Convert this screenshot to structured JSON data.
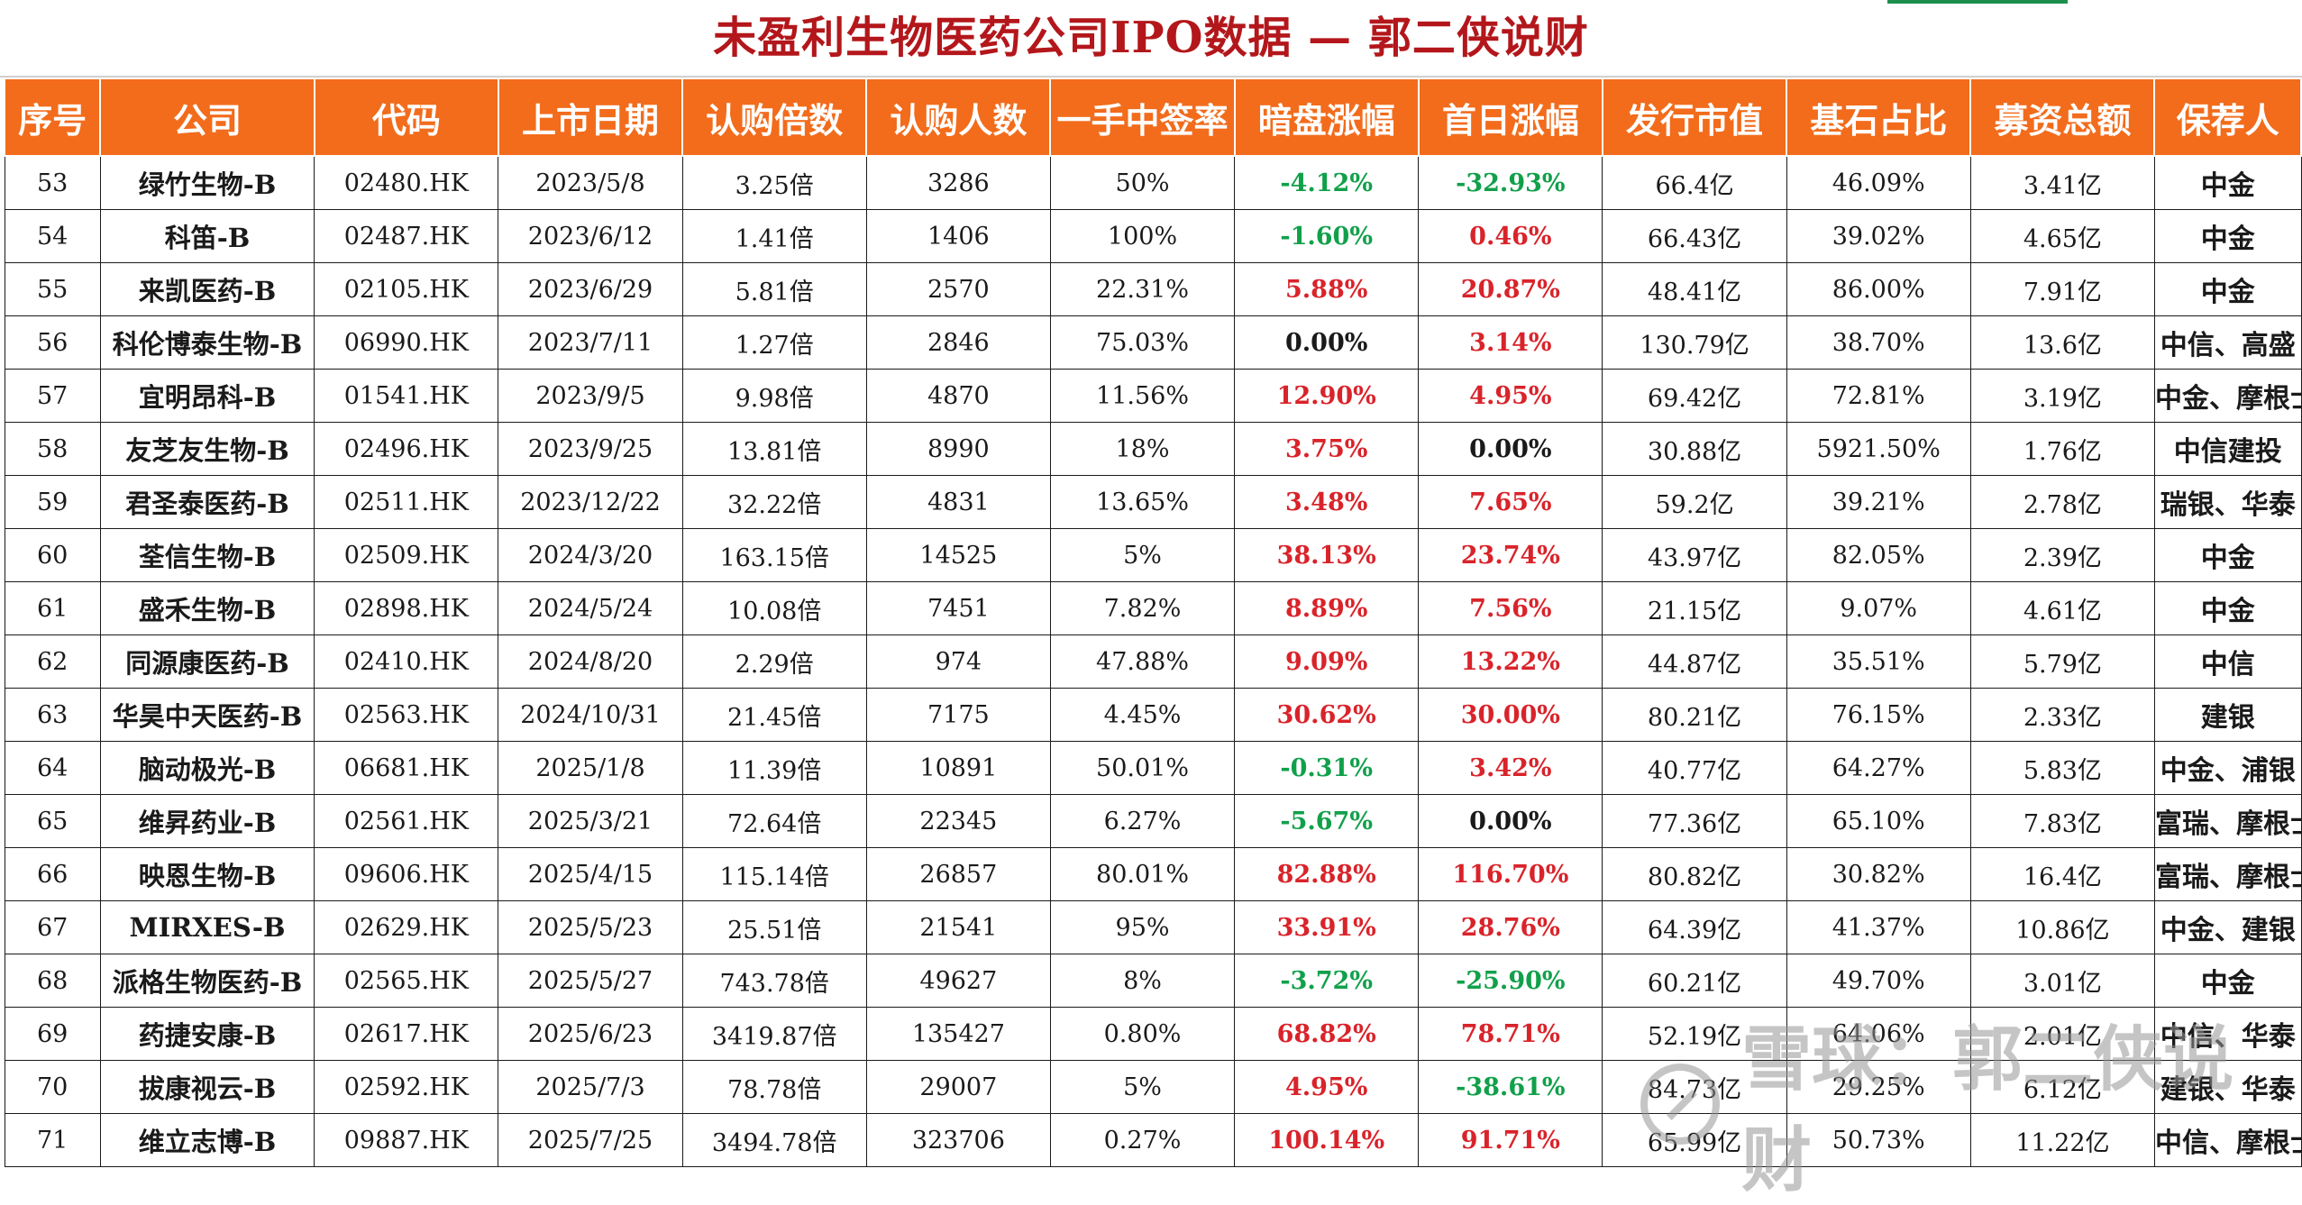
{
  "title": "未盈利生物医药公司IPO数据 — 郭二侠说财",
  "headers": [
    "序号",
    "公司",
    "代码",
    "上市日期",
    "认购倍数",
    "认购人数",
    "一手中签率",
    "暗盘涨幅",
    "首日涨幅",
    "发行市值",
    "基石占比",
    "募资总额",
    "保荐人"
  ],
  "rows": [
    [
      "53",
      "绿竹生物-B",
      "02480.HK",
      "2023/5/8",
      "3.25倍",
      "3286",
      "50%",
      "-4.12%",
      "-32.93%",
      "66.4亿",
      "46.09%",
      "3.41亿",
      "中金"
    ],
    [
      "54",
      "科笛-B",
      "02487.HK",
      "2023/6/12",
      "1.41倍",
      "1406",
      "100%",
      "-1.60%",
      "0.46%",
      "66.43亿",
      "39.02%",
      "4.65亿",
      "中金"
    ],
    [
      "55",
      "来凯医药-B",
      "02105.HK",
      "2023/6/29",
      "5.81倍",
      "2570",
      "22.31%",
      "5.88%",
      "20.87%",
      "48.41亿",
      "86.00%",
      "7.91亿",
      "中金"
    ],
    [
      "56",
      "科伦博泰生物-B",
      "06990.HK",
      "2023/7/11",
      "1.27倍",
      "2846",
      "75.03%",
      "0.00%",
      "3.14%",
      "130.79亿",
      "38.70%",
      "13.6亿",
      "中信、高盛"
    ],
    [
      "57",
      "宜明昂科-B",
      "01541.HK",
      "2023/9/5",
      "9.98倍",
      "4870",
      "11.56%",
      "12.90%",
      "4.95%",
      "69.42亿",
      "72.81%",
      "3.19亿",
      "中金、摩根士丹利"
    ],
    [
      "58",
      "友芝友生物-B",
      "02496.HK",
      "2023/9/25",
      "13.81倍",
      "8990",
      "18%",
      "3.75%",
      "0.00%",
      "30.88亿",
      "5921.50%",
      "1.76亿",
      "中信建投"
    ],
    [
      "59",
      "君圣泰医药-B",
      "02511.HK",
      "2023/12/22",
      "32.22倍",
      "4831",
      "13.65%",
      "3.48%",
      "7.65%",
      "59.2亿",
      "39.21%",
      "2.78亿",
      "瑞银、华泰"
    ],
    [
      "60",
      "荃信生物-B",
      "02509.HK",
      "2024/3/20",
      "163.15倍",
      "14525",
      "5%",
      "38.13%",
      "23.74%",
      "43.97亿",
      "82.05%",
      "2.39亿",
      "中金"
    ],
    [
      "61",
      "盛禾生物-B",
      "02898.HK",
      "2024/5/24",
      "10.08倍",
      "7451",
      "7.82%",
      "8.89%",
      "7.56%",
      "21.15亿",
      "9.07%",
      "4.61亿",
      "中金"
    ],
    [
      "62",
      "同源康医药-B",
      "02410.HK",
      "2024/8/20",
      "2.29倍",
      "974",
      "47.88%",
      "9.09%",
      "13.22%",
      "44.87亿",
      "35.51%",
      "5.79亿",
      "中信"
    ],
    [
      "63",
      "华昊中天医药-B",
      "02563.HK",
      "2024/10/31",
      "21.45倍",
      "7175",
      "4.45%",
      "30.62%",
      "30.00%",
      "80.21亿",
      "76.15%",
      "2.33亿",
      "建银"
    ],
    [
      "64",
      "脑动极光-B",
      "06681.HK",
      "2025/1/8",
      "11.39倍",
      "10891",
      "50.01%",
      "-0.31%",
      "3.42%",
      "40.77亿",
      "64.27%",
      "5.83亿",
      "中金、浦银"
    ],
    [
      "65",
      "维昇药业-B",
      "02561.HK",
      "2025/3/21",
      "72.64倍",
      "22345",
      "6.27%",
      "-5.67%",
      "0.00%",
      "77.36亿",
      "65.10%",
      "7.83亿",
      "富瑞、摩根士丹利"
    ],
    [
      "66",
      "映恩生物-B",
      "09606.HK",
      "2025/4/15",
      "115.14倍",
      "26857",
      "80.01%",
      "82.88%",
      "116.70%",
      "80.82亿",
      "30.82%",
      "16.4亿",
      "富瑞、摩根士丹利"
    ],
    [
      "67",
      "MIRXES-B",
      "02629.HK",
      "2025/5/23",
      "25.51倍",
      "21541",
      "95%",
      "33.91%",
      "28.76%",
      "64.39亿",
      "41.37%",
      "10.86亿",
      "中金、建银"
    ],
    [
      "68",
      "派格生物医药-B",
      "02565.HK",
      "2025/5/27",
      "743.78倍",
      "49627",
      "8%",
      "-3.72%",
      "-25.90%",
      "60.21亿",
      "49.70%",
      "3.01亿",
      "中金"
    ],
    [
      "69",
      "药捷安康-B",
      "02617.HK",
      "2025/6/23",
      "3419.87倍",
      "135427",
      "0.80%",
      "68.82%",
      "78.71%",
      "52.19亿",
      "64.06%",
      "2.01亿",
      "中信、华泰"
    ],
    [
      "70",
      "拔康视云-B",
      "02592.HK",
      "2025/7/3",
      "78.78倍",
      "29007",
      "5%",
      "4.95%",
      "-38.61%",
      "84.73亿",
      "29.25%",
      "6.12亿",
      "建银、华泰"
    ],
    [
      "71",
      "维立志博-B",
      "09887.HK",
      "2025/7/25",
      "3494.78倍",
      "323706",
      "0.27%",
      "100.14%",
      "91.71%",
      "65.99亿",
      "50.73%",
      "11.22亿",
      "中信、摩根士丹利"
    ]
  ],
  "watermark": "雪球：郭二侠说财",
  "colors": {
    "header_bg": "#f26c1c",
    "title": "#b3171b",
    "positive": "#d9232a",
    "negative": "#11a04a"
  }
}
